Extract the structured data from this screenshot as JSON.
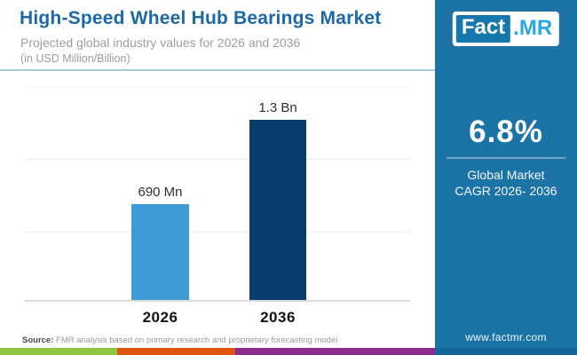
{
  "header": {
    "title": "High-Speed Wheel Hub Bearings Market",
    "subtitle_line1": "Projected global industry values for 2026 and 2036",
    "subtitle_line2": "(in USD Million/Billion)"
  },
  "logo": {
    "part1": "Fact",
    "part2": ".MR"
  },
  "sidebar": {
    "stat_value": "6.8%",
    "stat_label_line1": "Global Market",
    "stat_label_line2": "CAGR 2026- 2036",
    "website": "www.factmr.com",
    "bg_color": "#1c74a6"
  },
  "chart_data": {
    "type": "bar",
    "categories": [
      "2026",
      "2036"
    ],
    "values": [
      690,
      1300
    ],
    "value_labels": [
      "690 Mn",
      "1.3 Bn"
    ],
    "unit": "USD Million",
    "title": "High-Speed Wheel Hub Bearings Market projected values",
    "xlabel": "",
    "ylabel": "",
    "ylim": [
      0,
      1550
    ],
    "grid": true,
    "legend": "none",
    "bar_colors": [
      "#3d9bd5",
      "#0b3c6e"
    ]
  },
  "footer": {
    "source_label": "Source:",
    "source_text": " FMR analysis based on primary research and proprietary forecasting model",
    "stripe_colors": [
      "#8dc63f",
      "#e0560f",
      "#8e2d8e",
      "#14659c"
    ]
  }
}
